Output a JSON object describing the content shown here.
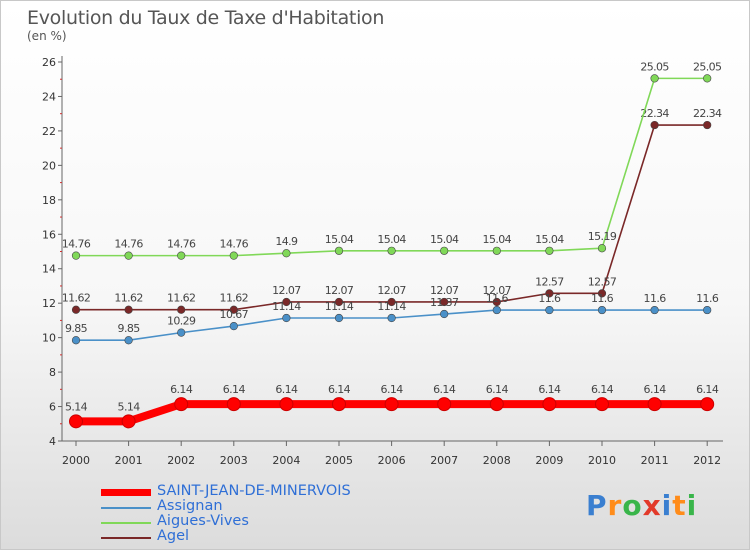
{
  "chart_data": {
    "type": "line",
    "title": "Evolution du Taux de Taxe d'Habitation",
    "subtitle": "(en %)",
    "categories": [
      "2000",
      "2001",
      "2002",
      "2003",
      "2004",
      "2005",
      "2006",
      "2007",
      "2008",
      "2009",
      "2010",
      "2011",
      "2012"
    ],
    "ylim": [
      4,
      26
    ],
    "yticks": [
      "4",
      "6",
      "8",
      "10",
      "12",
      "14",
      "16",
      "18",
      "20",
      "22",
      "24",
      "26"
    ],
    "grid": false,
    "legend_position": "bottom-left",
    "series": [
      {
        "name": "SAINT-JEAN-DE-MINERVOIS",
        "color": "#ff0000",
        "values": [
          5.14,
          5.14,
          6.14,
          6.14,
          6.14,
          6.14,
          6.14,
          6.14,
          6.14,
          6.14,
          6.14,
          6.14,
          6.14
        ],
        "labels": [
          "5.14",
          "5.14",
          "6.14",
          "6.14",
          "6.14",
          "6.14",
          "6.14",
          "6.14",
          "6.14",
          "6.14",
          "6.14",
          "6.14",
          "6.14"
        ]
      },
      {
        "name": "Assignan",
        "color": "#4a90c8",
        "values": [
          9.85,
          9.85,
          10.29,
          10.67,
          11.14,
          11.14,
          11.14,
          11.37,
          11.6,
          11.6,
          11.6,
          11.6,
          11.6
        ],
        "labels": [
          "9.85",
          "9.85",
          "10.29",
          "10.67",
          "11.14",
          "11.14",
          "11.14",
          "11.37",
          "11.6",
          "11.6",
          "11.6",
          "11.6",
          "11.6"
        ]
      },
      {
        "name": "Aigues-Vives",
        "color": "#80d858",
        "values": [
          14.76,
          14.76,
          14.76,
          14.76,
          14.9,
          15.04,
          15.04,
          15.04,
          15.04,
          15.04,
          15.19,
          25.05,
          25.05
        ],
        "labels": [
          "14.76",
          "14.76",
          "14.76",
          "14.76",
          "14.9",
          "15.04",
          "15.04",
          "15.04",
          "15.04",
          "15.04",
          "15.19",
          "25.05",
          "25.05"
        ]
      },
      {
        "name": "Agel",
        "color": "#7a2828",
        "values": [
          11.62,
          11.62,
          11.62,
          11.62,
          12.07,
          12.07,
          12.07,
          12.07,
          12.07,
          12.57,
          12.57,
          22.34,
          22.34
        ],
        "labels": [
          "11.62",
          "11.62",
          "11.62",
          "11.62",
          "12.07",
          "12.07",
          "12.07",
          "12.07",
          "12.07",
          "12.57",
          "12.57",
          "22.34",
          "22.34"
        ]
      }
    ]
  },
  "logo": {
    "letters": [
      "P",
      "r",
      "o",
      "x",
      "i",
      "t",
      "i"
    ],
    "colors": [
      "#3a7fd0",
      "#ff8c1a",
      "#39b54a",
      "#e23a2a",
      "#3a7fd0",
      "#ff8c1a",
      "#39b54a"
    ]
  }
}
